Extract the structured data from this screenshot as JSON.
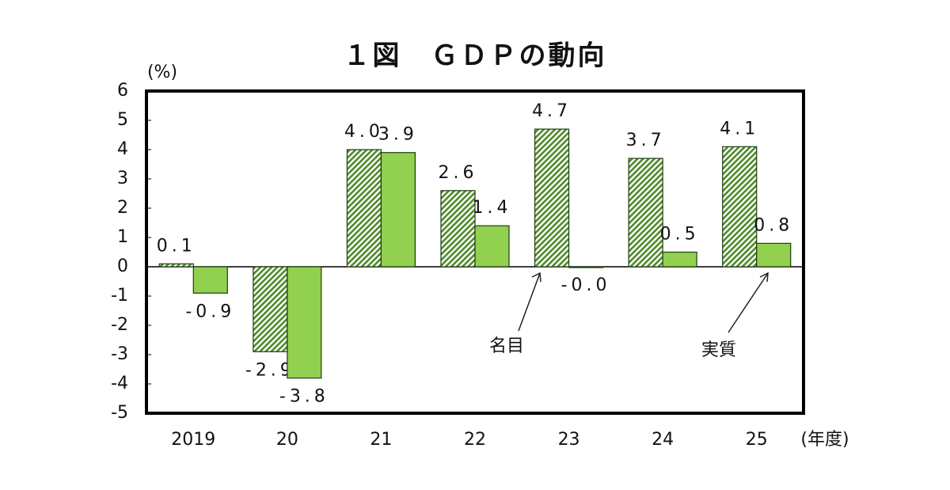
{
  "chart_data": {
    "type": "bar",
    "title": "１図　ＧＤＰの動向",
    "y_axis_label": "(%)",
    "x_axis_label": "(年度)",
    "categories": [
      "2019",
      "20",
      "21",
      "22",
      "23",
      "24",
      "25"
    ],
    "series": [
      {
        "name": "名目",
        "color": "#4f8a2a",
        "hatch": true,
        "values": [
          0.1,
          -2.9,
          4.0,
          2.6,
          4.7,
          3.7,
          4.1
        ],
        "value_labels": [
          "0.1",
          "-2.9",
          "4.0",
          "2.6",
          "4.7",
          "3.7",
          "4.1"
        ]
      },
      {
        "name": "実質",
        "color": "#92d050",
        "hatch": false,
        "values": [
          -0.9,
          -3.8,
          3.9,
          1.4,
          -0.0,
          0.5,
          0.8
        ],
        "value_labels": [
          "-0.9",
          "-3.8",
          "3.9",
          "1.4",
          "-0.0",
          "0.5",
          "0.8"
        ]
      }
    ],
    "ylim": [
      -5,
      6
    ],
    "yticks": [
      -5,
      -4,
      -3,
      -2,
      -1,
      0,
      1,
      2,
      3,
      4,
      5,
      6
    ]
  }
}
